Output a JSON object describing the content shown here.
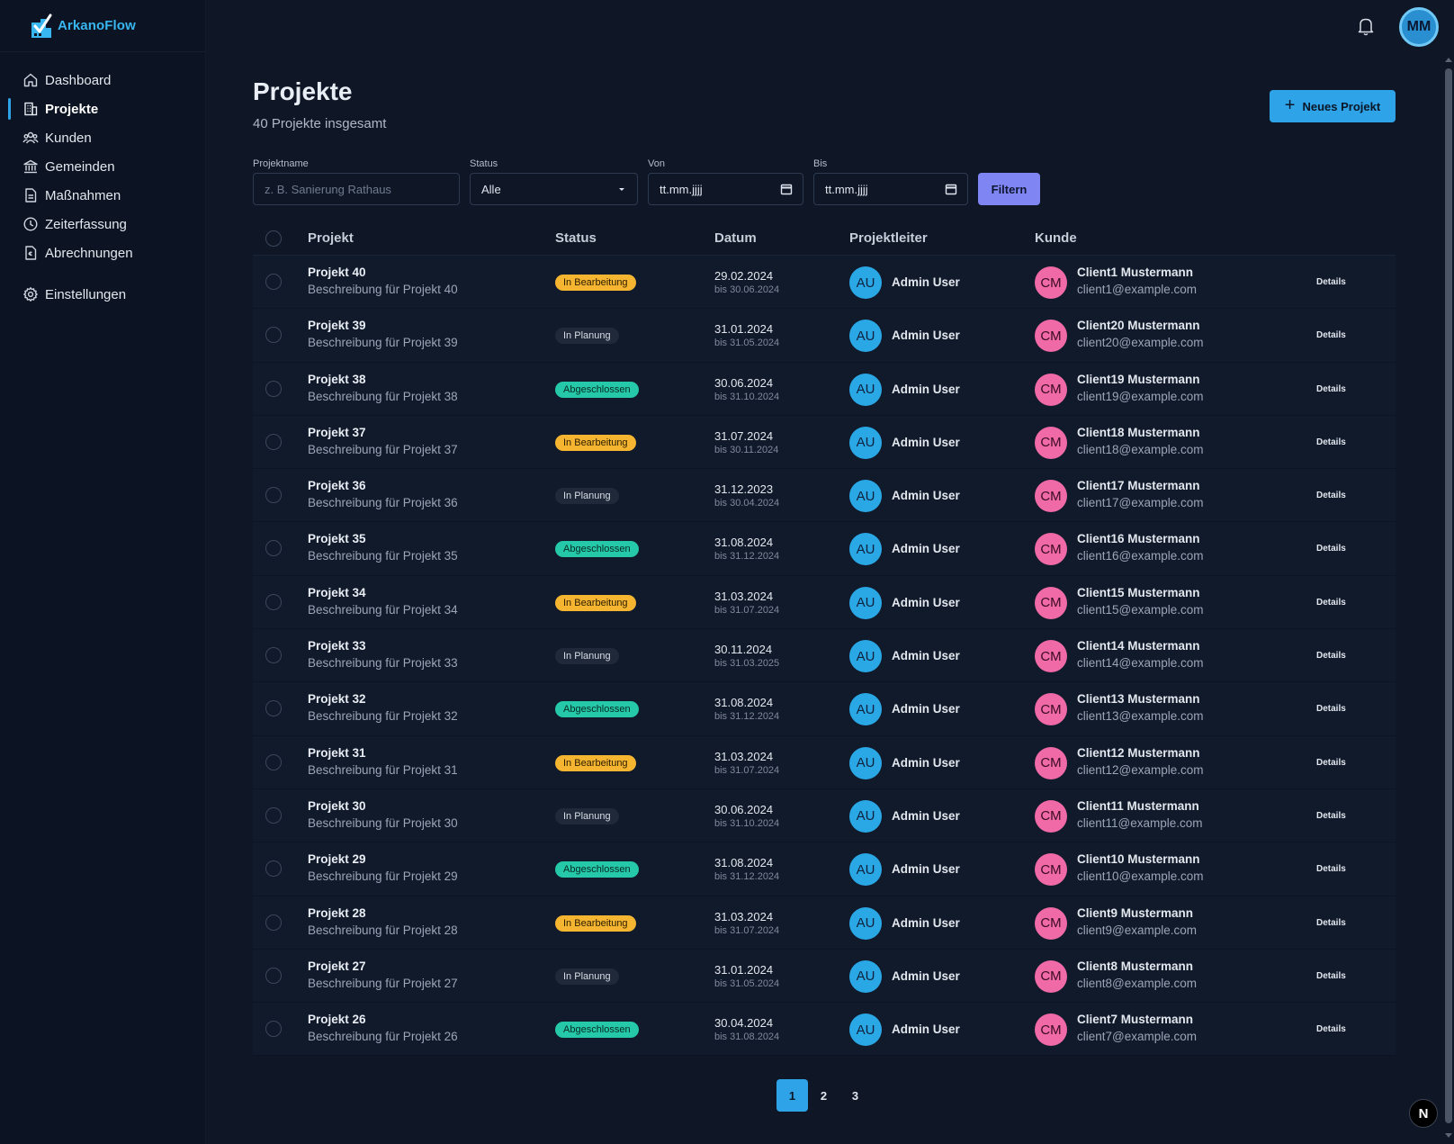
{
  "app": {
    "name": "ArkanoFlow",
    "brand_color": "#38b6f0"
  },
  "user": {
    "initials": "MM"
  },
  "sidebar": {
    "items": [
      {
        "label": "Dashboard",
        "icon": "home-icon",
        "active": false
      },
      {
        "label": "Projekte",
        "icon": "building-icon",
        "active": true
      },
      {
        "label": "Kunden",
        "icon": "users-icon",
        "active": false
      },
      {
        "label": "Gemeinden",
        "icon": "bank-icon",
        "active": false
      },
      {
        "label": "Maßnahmen",
        "icon": "document-icon",
        "active": false
      },
      {
        "label": "Zeiterfassung",
        "icon": "clock-icon",
        "active": false
      },
      {
        "label": "Abrechnungen",
        "icon": "invoice-icon",
        "active": false
      }
    ],
    "settings": {
      "label": "Einstellungen",
      "icon": "gear-icon"
    }
  },
  "header": {
    "title": "Projekte",
    "subtitle": "40 Projekte insgesamt",
    "new_button": "Neues Projekt"
  },
  "filters": {
    "name_label": "Projektname",
    "name_placeholder": "z. B. Sanierung Rathaus",
    "status_label": "Status",
    "status_value": "Alle",
    "from_label": "Von",
    "from_value": "tt.mm.jjjj",
    "to_label": "Bis",
    "to_value": "tt.mm.jjjj",
    "submit": "Filtern"
  },
  "table": {
    "columns": [
      "Projekt",
      "Status",
      "Datum",
      "Projektleiter",
      "Kunde"
    ],
    "details_label": "Details",
    "status_colors": {
      "In Bearbeitung": "#f5b530",
      "In Planung": "#1f293a",
      "Abgeschlossen": "#25c8a8"
    },
    "rows": [
      {
        "name": "Projekt 40",
        "desc": "Beschreibung für Projekt 40",
        "status": "In Bearbeitung",
        "date": "29.02.2024",
        "until": "bis 30.06.2024",
        "leader_initials": "AU",
        "leader": "Admin User",
        "client_initials": "CM",
        "client": "Client1 Mustermann",
        "email": "client1@example.com"
      },
      {
        "name": "Projekt 39",
        "desc": "Beschreibung für Projekt 39",
        "status": "In Planung",
        "date": "31.01.2024",
        "until": "bis 31.05.2024",
        "leader_initials": "AU",
        "leader": "Admin User",
        "client_initials": "CM",
        "client": "Client20 Mustermann",
        "email": "client20@example.com"
      },
      {
        "name": "Projekt 38",
        "desc": "Beschreibung für Projekt 38",
        "status": "Abgeschlossen",
        "date": "30.06.2024",
        "until": "bis 31.10.2024",
        "leader_initials": "AU",
        "leader": "Admin User",
        "client_initials": "CM",
        "client": "Client19 Mustermann",
        "email": "client19@example.com"
      },
      {
        "name": "Projekt 37",
        "desc": "Beschreibung für Projekt 37",
        "status": "In Bearbeitung",
        "date": "31.07.2024",
        "until": "bis 30.11.2024",
        "leader_initials": "AU",
        "leader": "Admin User",
        "client_initials": "CM",
        "client": "Client18 Mustermann",
        "email": "client18@example.com"
      },
      {
        "name": "Projekt 36",
        "desc": "Beschreibung für Projekt 36",
        "status": "In Planung",
        "date": "31.12.2023",
        "until": "bis 30.04.2024",
        "leader_initials": "AU",
        "leader": "Admin User",
        "client_initials": "CM",
        "client": "Client17 Mustermann",
        "email": "client17@example.com"
      },
      {
        "name": "Projekt 35",
        "desc": "Beschreibung für Projekt 35",
        "status": "Abgeschlossen",
        "date": "31.08.2024",
        "until": "bis 31.12.2024",
        "leader_initials": "AU",
        "leader": "Admin User",
        "client_initials": "CM",
        "client": "Client16 Mustermann",
        "email": "client16@example.com"
      },
      {
        "name": "Projekt 34",
        "desc": "Beschreibung für Projekt 34",
        "status": "In Bearbeitung",
        "date": "31.03.2024",
        "until": "bis 31.07.2024",
        "leader_initials": "AU",
        "leader": "Admin User",
        "client_initials": "CM",
        "client": "Client15 Mustermann",
        "email": "client15@example.com"
      },
      {
        "name": "Projekt 33",
        "desc": "Beschreibung für Projekt 33",
        "status": "In Planung",
        "date": "30.11.2024",
        "until": "bis 31.03.2025",
        "leader_initials": "AU",
        "leader": "Admin User",
        "client_initials": "CM",
        "client": "Client14 Mustermann",
        "email": "client14@example.com"
      },
      {
        "name": "Projekt 32",
        "desc": "Beschreibung für Projekt 32",
        "status": "Abgeschlossen",
        "date": "31.08.2024",
        "until": "bis 31.12.2024",
        "leader_initials": "AU",
        "leader": "Admin User",
        "client_initials": "CM",
        "client": "Client13 Mustermann",
        "email": "client13@example.com"
      },
      {
        "name": "Projekt 31",
        "desc": "Beschreibung für Projekt 31",
        "status": "In Bearbeitung",
        "date": "31.03.2024",
        "until": "bis 31.07.2024",
        "leader_initials": "AU",
        "leader": "Admin User",
        "client_initials": "CM",
        "client": "Client12 Mustermann",
        "email": "client12@example.com"
      },
      {
        "name": "Projekt 30",
        "desc": "Beschreibung für Projekt 30",
        "status": "In Planung",
        "date": "30.06.2024",
        "until": "bis 31.10.2024",
        "leader_initials": "AU",
        "leader": "Admin User",
        "client_initials": "CM",
        "client": "Client11 Mustermann",
        "email": "client11@example.com"
      },
      {
        "name": "Projekt 29",
        "desc": "Beschreibung für Projekt 29",
        "status": "Abgeschlossen",
        "date": "31.08.2024",
        "until": "bis 31.12.2024",
        "leader_initials": "AU",
        "leader": "Admin User",
        "client_initials": "CM",
        "client": "Client10 Mustermann",
        "email": "client10@example.com"
      },
      {
        "name": "Projekt 28",
        "desc": "Beschreibung für Projekt 28",
        "status": "In Bearbeitung",
        "date": "31.03.2024",
        "until": "bis 31.07.2024",
        "leader_initials": "AU",
        "leader": "Admin User",
        "client_initials": "CM",
        "client": "Client9 Mustermann",
        "email": "client9@example.com"
      },
      {
        "name": "Projekt 27",
        "desc": "Beschreibung für Projekt 27",
        "status": "In Planung",
        "date": "31.01.2024",
        "until": "bis 31.05.2024",
        "leader_initials": "AU",
        "leader": "Admin User",
        "client_initials": "CM",
        "client": "Client8 Mustermann",
        "email": "client8@example.com"
      },
      {
        "name": "Projekt 26",
        "desc": "Beschreibung für Projekt 26",
        "status": "Abgeschlossen",
        "date": "30.04.2024",
        "until": "bis 31.08.2024",
        "leader_initials": "AU",
        "leader": "Admin User",
        "client_initials": "CM",
        "client": "Client7 Mustermann",
        "email": "client7@example.com"
      }
    ]
  },
  "pagination": {
    "pages": [
      "1",
      "2",
      "3"
    ],
    "current": "1"
  },
  "floating_badge": "N"
}
